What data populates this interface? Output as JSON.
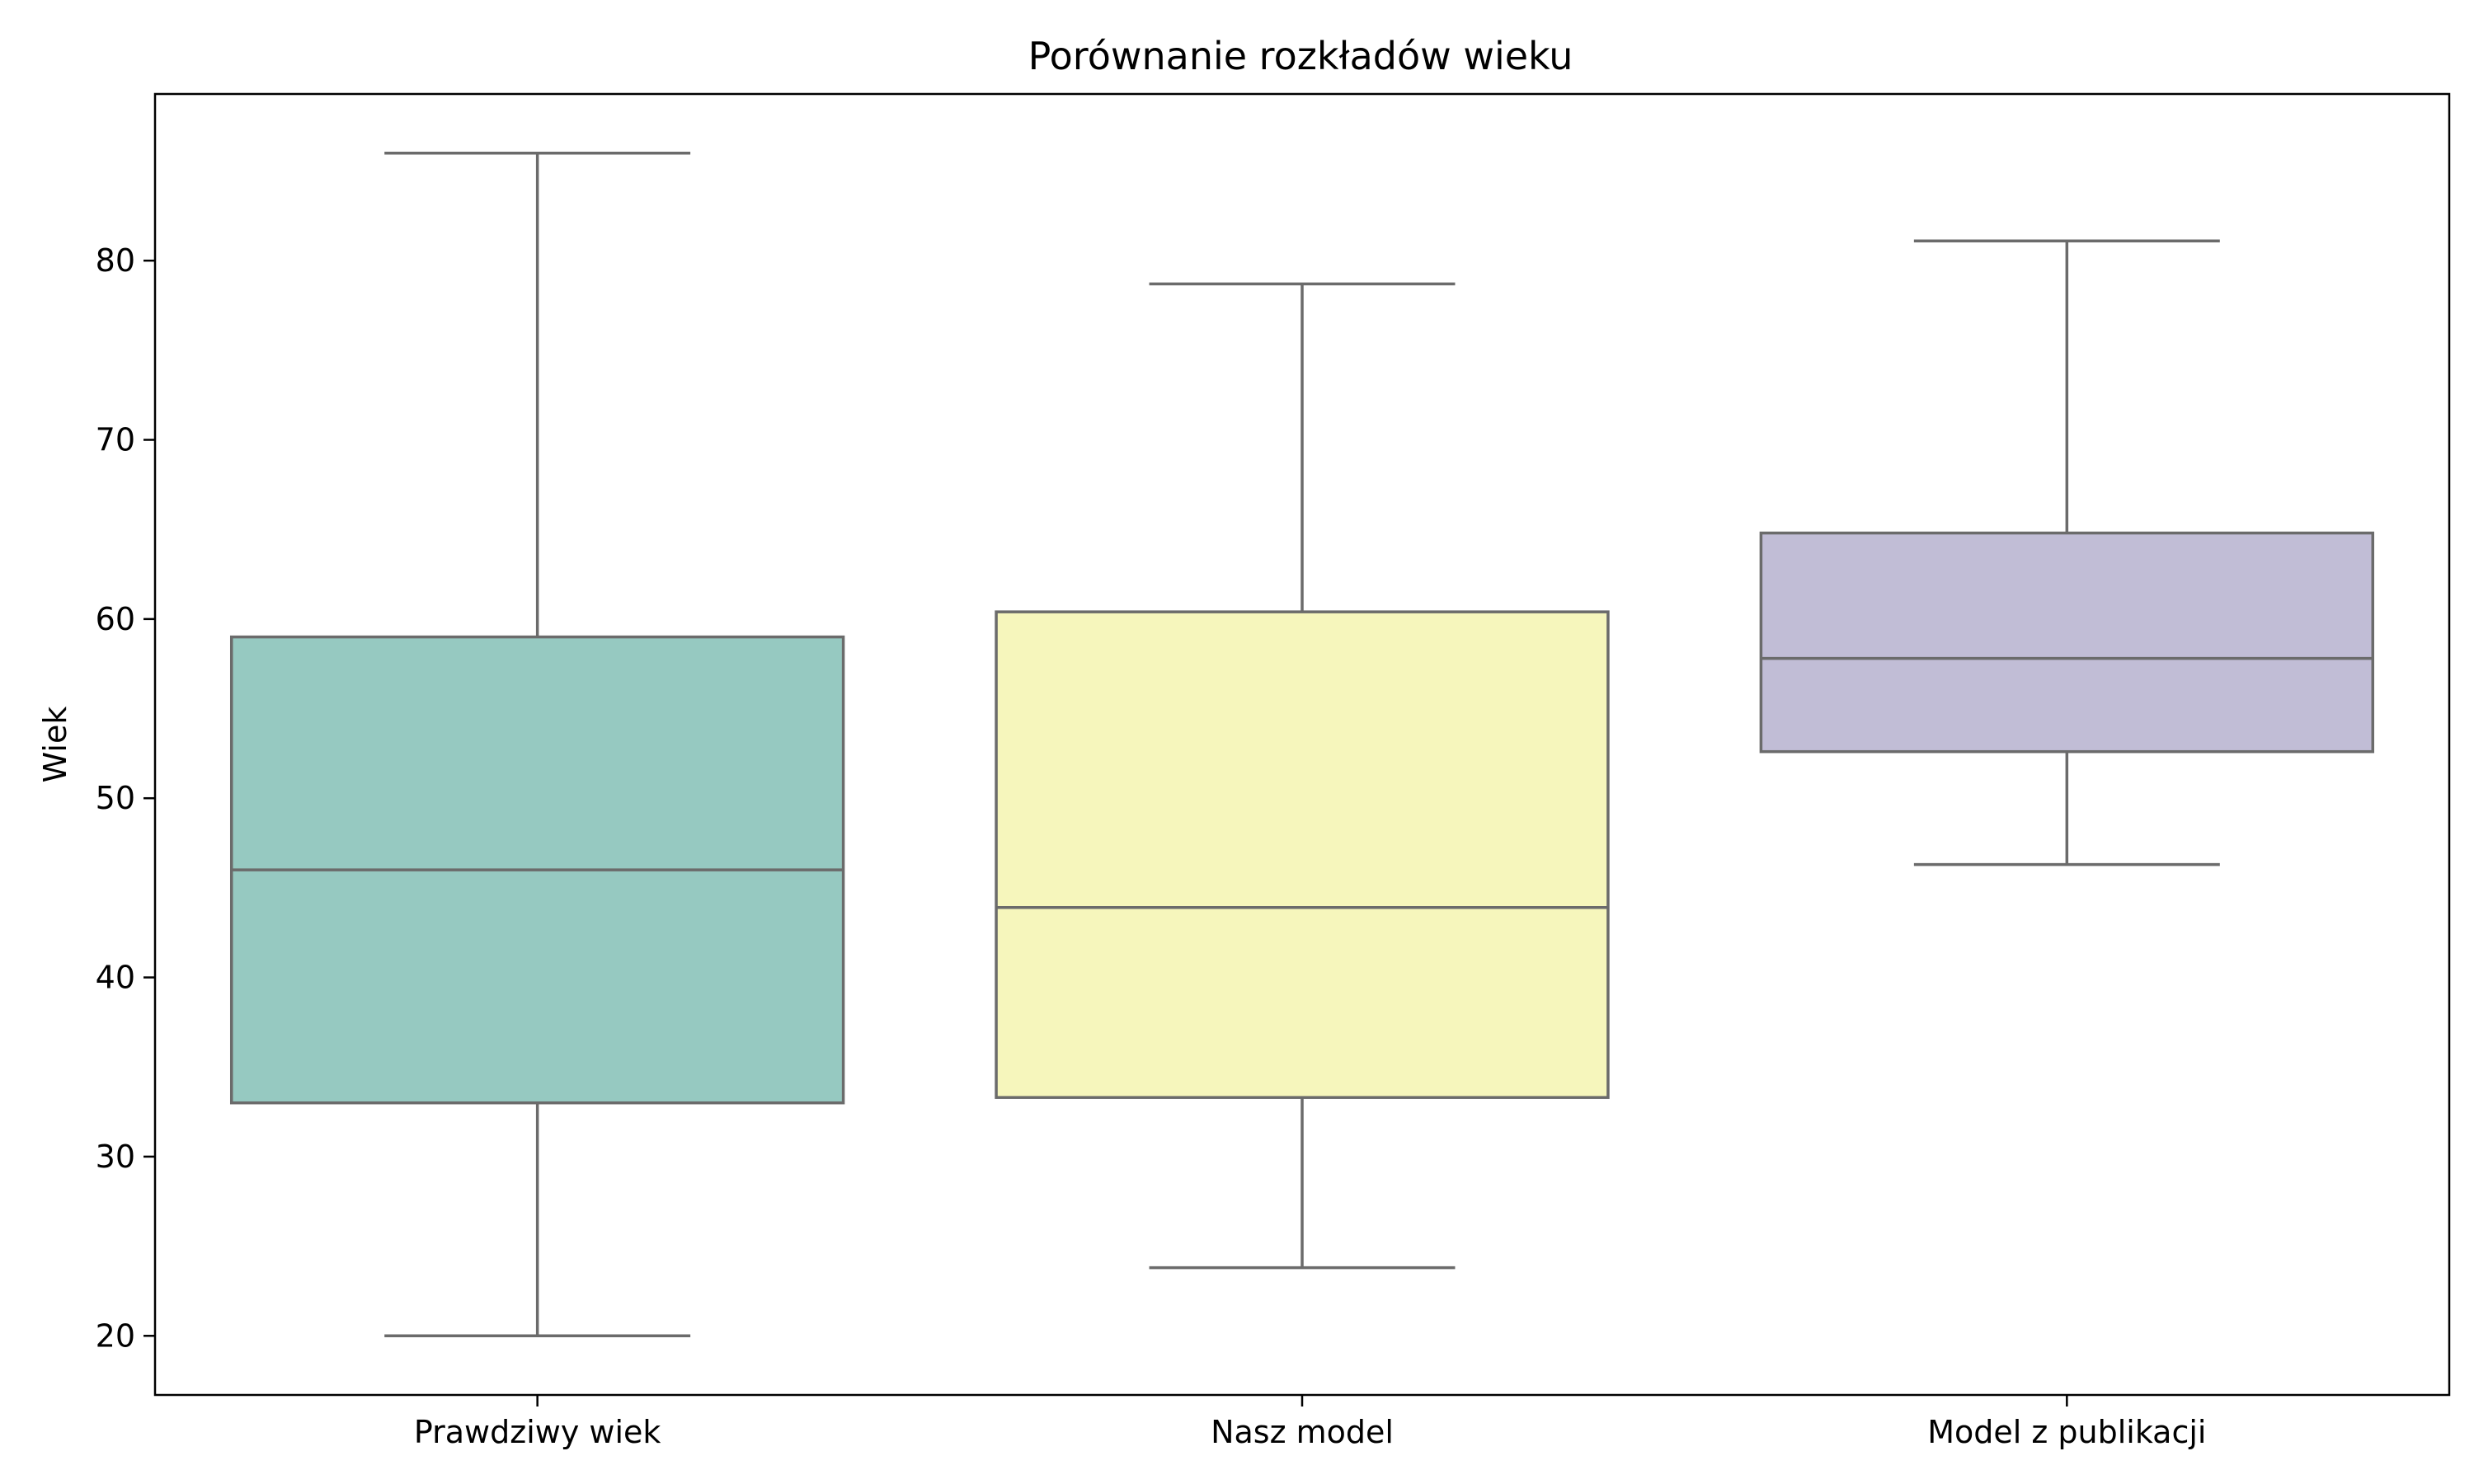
{
  "chart_data": {
    "type": "box",
    "title": "Porównanie rozkładów wieku",
    "xlabel": "",
    "ylabel": "Wiek",
    "ylim": [
      16.7,
      89.3
    ],
    "yticks": [
      20,
      30,
      40,
      50,
      60,
      70,
      80
    ],
    "categories": [
      "Prawdziwy wiek",
      "Nasz model",
      "Model z publikacji"
    ],
    "boxes": [
      {
        "category": "Prawdziwy wiek",
        "whisker_low": 20,
        "q1": 33,
        "median": 46,
        "q3": 59,
        "whisker_high": 86,
        "color": "#96c9c1"
      },
      {
        "category": "Nasz model",
        "whisker_low": 23.8,
        "q1": 33.3,
        "median": 43.9,
        "q3": 60.4,
        "whisker_high": 78.7,
        "color": "#f6f6bc"
      },
      {
        "category": "Model z publikacji",
        "whisker_low": 46.3,
        "q1": 52.6,
        "median": 57.8,
        "q3": 64.8,
        "whisker_high": 81.1,
        "color": "#c1bdd6"
      }
    ],
    "line_color": "#6b6b6b",
    "grid": false,
    "legend": "none"
  }
}
